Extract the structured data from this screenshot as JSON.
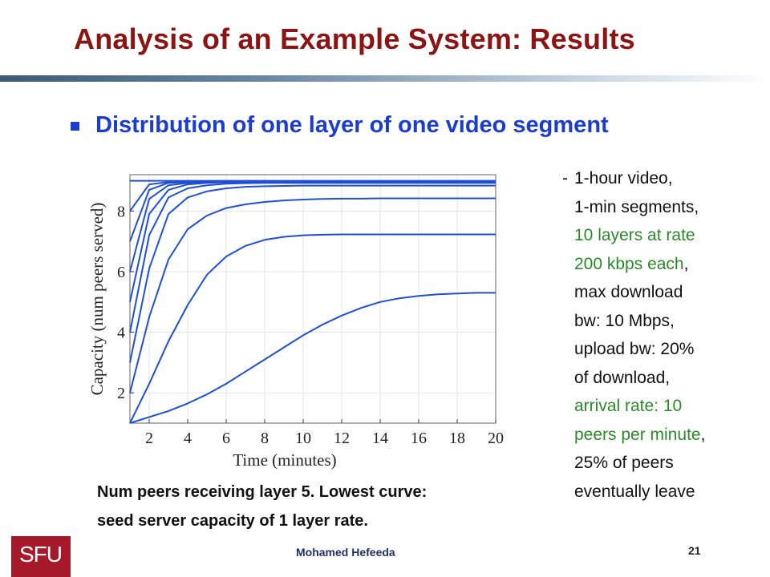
{
  "slide": {
    "title": "Analysis of an Example System: Results",
    "bullet": "Distribution of one layer of one video segment",
    "notes": {
      "dash": "-",
      "lines": [
        {
          "text": "1-hour video,",
          "color": "black"
        },
        {
          "text": "1-min segments,",
          "color": "black"
        },
        {
          "text": "10 layers at rate",
          "color": "green"
        },
        {
          "text": "200 kbps each",
          "color": "green",
          "suffix": ","
        },
        {
          "text": "max download",
          "color": "black"
        },
        {
          "text": "bw: 10 Mbps,",
          "color": "black"
        },
        {
          "text": "upload bw: 20%",
          "color": "black"
        },
        {
          "text": "of download,",
          "color": "black"
        },
        {
          "text": "arrival rate: 10",
          "color": "green"
        },
        {
          "text": "peers per minute",
          "color": "green",
          "suffix": ","
        },
        {
          "text": "25% of peers",
          "color": "black"
        },
        {
          "text": "eventually leave",
          "color": "black"
        }
      ]
    },
    "caption_line1": "Num peers receiving layer 5. Lowest curve:",
    "caption_line2": "seed server capacity of 1 layer rate.",
    "author": "Mohamed  Hefeeda",
    "page_number": "21",
    "logo_text": "SFU"
  },
  "colors": {
    "title": "#8b1414",
    "bullet": "#1a3ccf",
    "curve": "#1f4fd6",
    "note_green": "#2a8a2a",
    "logo": "#a5192b"
  },
  "chart_data": {
    "type": "line",
    "xlabel": "Time (minutes)",
    "ylabel": "Capacity (num peers served)",
    "xlim": [
      1,
      20
    ],
    "ylim": [
      1,
      9.2
    ],
    "xticks": [
      2,
      4,
      6,
      8,
      10,
      12,
      14,
      16,
      18,
      20
    ],
    "yticks": [
      2,
      4,
      6,
      8
    ],
    "grid": true,
    "x": [
      1,
      2,
      3,
      4,
      5,
      6,
      7,
      8,
      9,
      10,
      11,
      12,
      13,
      14,
      15,
      16,
      17,
      18,
      19,
      20
    ],
    "series": [
      {
        "values": [
          1.0,
          1.2,
          1.4,
          1.65,
          1.95,
          2.3,
          2.7,
          3.1,
          3.5,
          3.9,
          4.25,
          4.55,
          4.8,
          5.0,
          5.12,
          5.2,
          5.25,
          5.28,
          5.3,
          5.3
        ]
      },
      {
        "values": [
          1.0,
          2.3,
          3.7,
          4.9,
          5.9,
          6.5,
          6.85,
          7.05,
          7.15,
          7.2,
          7.22,
          7.23,
          7.23,
          7.23,
          7.23,
          7.23,
          7.23,
          7.23,
          7.23,
          7.23
        ]
      },
      {
        "values": [
          2.0,
          4.5,
          6.4,
          7.4,
          7.85,
          8.1,
          8.22,
          8.3,
          8.35,
          8.38,
          8.4,
          8.41,
          8.41,
          8.42,
          8.42,
          8.42,
          8.42,
          8.42,
          8.42,
          8.42
        ]
      },
      {
        "values": [
          3.0,
          6.1,
          7.9,
          8.45,
          8.65,
          8.75,
          8.8,
          8.82,
          8.83,
          8.84,
          8.84,
          8.84,
          8.84,
          8.84,
          8.84,
          8.84,
          8.84,
          8.84,
          8.84,
          8.84
        ]
      },
      {
        "values": [
          4.0,
          7.2,
          8.45,
          8.75,
          8.85,
          8.9,
          8.92,
          8.93,
          8.93,
          8.93,
          8.93,
          8.93,
          8.93,
          8.93,
          8.93,
          8.93,
          8.93,
          8.93,
          8.93,
          8.93
        ]
      },
      {
        "values": [
          5.0,
          7.9,
          8.7,
          8.88,
          8.93,
          8.95,
          8.96,
          8.96,
          8.96,
          8.96,
          8.96,
          8.96,
          8.96,
          8.96,
          8.96,
          8.96,
          8.96,
          8.96,
          8.96,
          8.96
        ]
      },
      {
        "values": [
          6.0,
          8.4,
          8.85,
          8.93,
          8.96,
          8.97,
          8.97,
          8.97,
          8.97,
          8.97,
          8.97,
          8.97,
          8.97,
          8.97,
          8.97,
          8.97,
          8.97,
          8.97,
          8.97,
          8.97
        ]
      },
      {
        "values": [
          7.0,
          8.7,
          8.93,
          8.96,
          8.97,
          8.98,
          8.98,
          8.98,
          8.98,
          8.98,
          8.98,
          8.98,
          8.98,
          8.98,
          8.98,
          8.98,
          8.98,
          8.98,
          8.98,
          8.98
        ]
      },
      {
        "values": [
          8.0,
          8.88,
          8.96,
          8.98,
          8.99,
          8.99,
          8.99,
          8.99,
          8.99,
          8.99,
          8.99,
          8.99,
          8.99,
          8.99,
          8.99,
          8.99,
          8.99,
          8.99,
          8.99,
          8.99
        ]
      },
      {
        "values": [
          9.0,
          9.0,
          9.0,
          9.0,
          9.0,
          9.0,
          9.0,
          9.0,
          9.0,
          9.0,
          9.0,
          9.0,
          9.0,
          9.0,
          9.0,
          9.0,
          9.0,
          9.0,
          9.0,
          9.0
        ]
      }
    ]
  }
}
